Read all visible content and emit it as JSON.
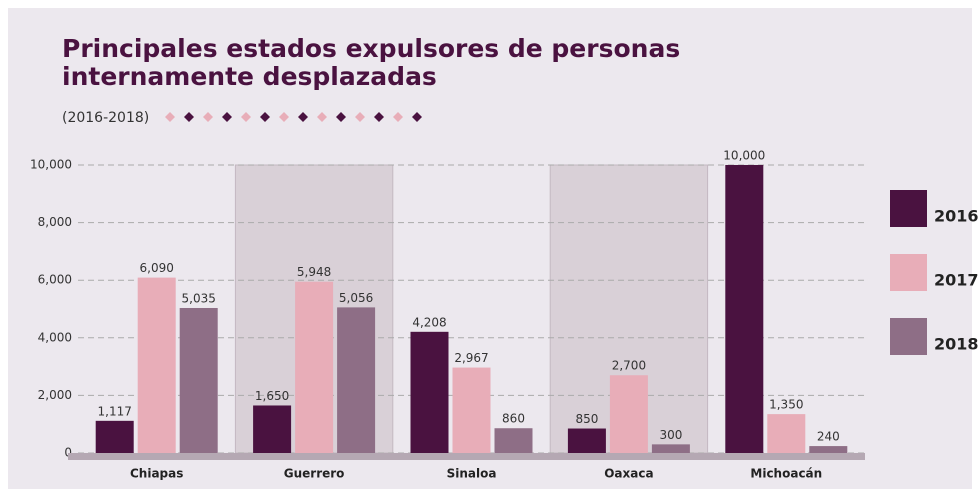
{
  "chart_data": {
    "type": "bar",
    "title": [
      "Principales estados expulsores de personas",
      "internamente desplazadas"
    ],
    "subtitle": "(2016-2018)",
    "categories": [
      "Chiapas",
      "Guerrero",
      "Sinaloa",
      "Oaxaca",
      "Michoacán"
    ],
    "series": [
      {
        "name": "2016",
        "color": "#4a1240",
        "values": [
          1117,
          1650,
          4208,
          850,
          10000
        ],
        "value_labels": [
          "1,117",
          "1,650",
          "4,208",
          "850",
          "10,000"
        ]
      },
      {
        "name": "2017",
        "color": "#e8adb8",
        "values": [
          6090,
          5948,
          2967,
          2700,
          1350
        ],
        "value_labels": [
          "6,090",
          "5,948",
          "2,967",
          "2,700",
          "1,350"
        ]
      },
      {
        "name": "2018",
        "color": "#8e6e86",
        "values": [
          5035,
          5056,
          860,
          300,
          240
        ],
        "value_labels": [
          "5,035",
          "5,056",
          "860",
          "300",
          "240"
        ]
      }
    ],
    "ylim": [
      0,
      10000
    ],
    "yticks": [
      0,
      {
        "value": 2000,
        "label": "2,000"
      },
      {
        "value": 4000,
        "label": "4,000"
      },
      {
        "value": 6000,
        "label": "6,000"
      },
      {
        "value": 8000,
        "label": "8,000"
      },
      {
        "value": 10000,
        "label": "10,000"
      }
    ],
    "grid": true,
    "legend": "right"
  }
}
